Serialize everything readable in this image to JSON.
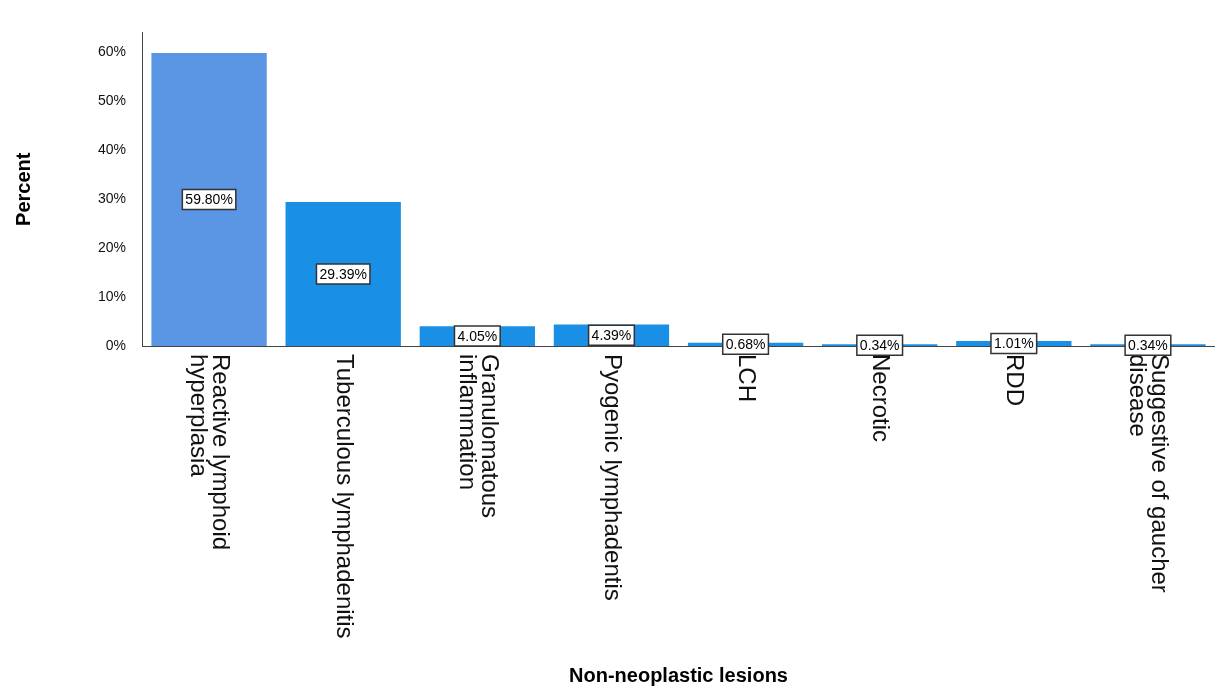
{
  "chart_data": {
    "type": "bar",
    "xlabel": "Non-neoplastic lesions",
    "ylabel": "Percent",
    "categories": [
      "Reactive lymphoid hyperplasia",
      "Tuberculous lymphadenitis",
      "Granulomatous inflammation",
      "Pyogenic lymphadentis",
      "LCH",
      "Necrotic",
      "RDD",
      "Suggestive of gaucher disease"
    ],
    "values": [
      59.8,
      29.39,
      4.05,
      4.39,
      0.68,
      0.34,
      1.01,
      0.34
    ],
    "value_labels": [
      "59.80%",
      "29.39%",
      "4.05%",
      "4.39%",
      "0.68%",
      "0.34%",
      "1.01%",
      "0.34%"
    ],
    "colors": [
      "#5a96e3",
      "#1a8fe6",
      "#1a8fe6",
      "#1a8fe6",
      "#1a8fe6",
      "#1a8fe6",
      "#1a8fe6",
      "#1a8fe6"
    ],
    "ylim": [
      0,
      64
    ],
    "yticks": [
      {
        "value": 0,
        "label": "0%"
      },
      {
        "value": 10,
        "label": "10%"
      },
      {
        "value": 20,
        "label": "20%"
      },
      {
        "value": 30,
        "label": "30%"
      },
      {
        "value": 40,
        "label": "40%"
      },
      {
        "value": 50,
        "label": "50%"
      },
      {
        "value": 60,
        "label": "60%"
      }
    ],
    "grid": false,
    "legend": false
  }
}
